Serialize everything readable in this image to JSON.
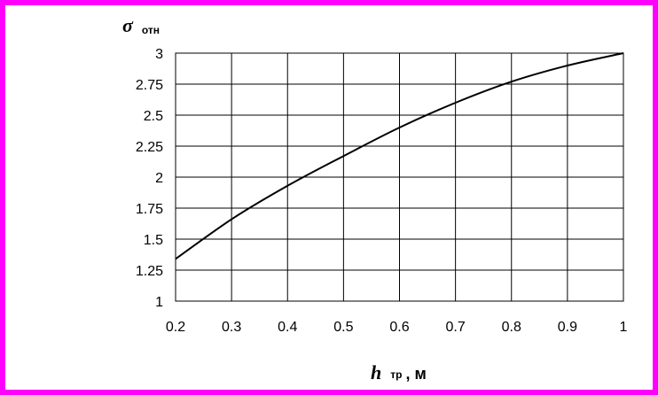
{
  "chart_data": {
    "type": "line",
    "ylabel": {
      "symbol": "σ",
      "subscript": "отн"
    },
    "xlabel": {
      "symbol": "h",
      "subscript": "тр",
      "unit": ", м"
    },
    "xlim": [
      0.2,
      1
    ],
    "ylim": [
      1,
      3
    ],
    "x_ticks": [
      0.2,
      0.3,
      0.4,
      0.5,
      0.6,
      0.7,
      0.8,
      0.9,
      1
    ],
    "x_tick_labels": [
      "0.2",
      "0.3",
      "0.4",
      "0.5",
      "0.6",
      "0.7",
      "0.8",
      "0.9",
      "1"
    ],
    "y_ticks": [
      1,
      1.25,
      1.5,
      1.75,
      2,
      2.25,
      2.5,
      2.75,
      3
    ],
    "y_tick_labels": [
      "1",
      "1.25",
      "1.5",
      "1.75",
      "2",
      "2.25",
      "2.5",
      "2.75",
      "3"
    ],
    "grid": true,
    "series": [
      {
        "color": "#000000",
        "x": [
          0.2,
          0.3,
          0.4,
          0.5,
          0.6,
          0.7,
          0.8,
          0.9,
          1.0
        ],
        "y": [
          1.34,
          1.66,
          1.93,
          2.17,
          2.4,
          2.6,
          2.77,
          2.9,
          3.0
        ]
      }
    ]
  },
  "colors": {
    "frame": "#ff00ff",
    "background": "#ffffff",
    "plot_area": "#ffffff",
    "grid": "#000000"
  }
}
